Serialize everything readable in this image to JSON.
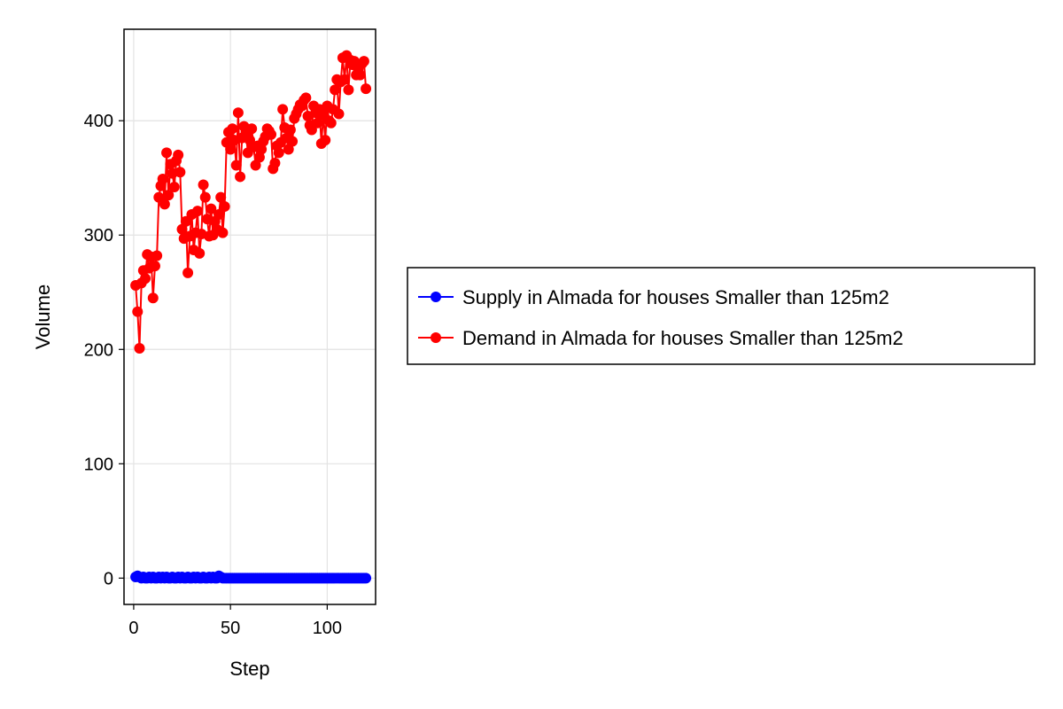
{
  "chart_data": {
    "type": "line",
    "xlabel": "Step",
    "ylabel": "Volume",
    "xlim": [
      -5,
      125
    ],
    "ylim": [
      -23,
      480
    ],
    "x_ticks": [
      0,
      50,
      100
    ],
    "y_ticks": [
      0,
      100,
      200,
      300,
      400
    ],
    "grid": true,
    "legend_position": "right",
    "series": [
      {
        "name": "Supply in Almada for houses Smaller than 125m2",
        "color": "#0000ff",
        "x": [
          1,
          2,
          3,
          4,
          5,
          6,
          7,
          8,
          9,
          10,
          11,
          12,
          13,
          14,
          15,
          16,
          17,
          18,
          19,
          20,
          21,
          22,
          23,
          24,
          25,
          26,
          27,
          28,
          29,
          30,
          31,
          32,
          33,
          34,
          35,
          36,
          37,
          38,
          39,
          40,
          41,
          42,
          43,
          44,
          45,
          46,
          47,
          48,
          49,
          50,
          51,
          52,
          53,
          54,
          55,
          56,
          57,
          58,
          59,
          60,
          61,
          62,
          63,
          64,
          65,
          66,
          67,
          68,
          69,
          70,
          71,
          72,
          73,
          74,
          75,
          76,
          77,
          78,
          79,
          80,
          81,
          82,
          83,
          84,
          85,
          86,
          87,
          88,
          89,
          90,
          91,
          92,
          93,
          94,
          95,
          96,
          97,
          98,
          99,
          100,
          101,
          102,
          103,
          104,
          105,
          106,
          107,
          108,
          109,
          110,
          111,
          112,
          113,
          114,
          115,
          116,
          117,
          118,
          119,
          120
        ],
        "values": [
          1,
          2,
          1,
          0,
          1,
          0,
          0,
          1,
          0,
          1,
          0,
          0,
          1,
          0,
          1,
          0,
          1,
          0,
          0,
          1,
          0,
          0,
          1,
          0,
          1,
          0,
          0,
          1,
          0,
          0,
          1,
          0,
          1,
          0,
          0,
          1,
          0,
          0,
          1,
          0,
          1,
          0,
          0,
          2,
          1,
          0,
          0,
          0,
          0,
          0,
          0,
          0,
          0,
          0,
          0,
          0,
          0,
          0,
          0,
          0,
          0,
          0,
          0,
          0,
          0,
          0,
          0,
          0,
          0,
          0,
          0,
          0,
          0,
          0,
          0,
          0,
          0,
          0,
          0,
          0,
          0,
          0,
          0,
          0,
          0,
          0,
          0,
          0,
          0,
          0,
          0,
          0,
          0,
          0,
          0,
          0,
          0,
          0,
          0,
          0,
          0,
          0,
          0,
          0,
          0,
          0,
          0,
          0,
          0,
          0,
          0,
          0,
          0,
          0,
          0,
          0,
          0,
          0,
          0,
          0
        ]
      },
      {
        "name": "Demand in Almada for houses Smaller than 125m2",
        "color": "#ff0000",
        "x": [
          1,
          2,
          3,
          4,
          5,
          6,
          7,
          8,
          9,
          10,
          11,
          12,
          13,
          14,
          15,
          16,
          17,
          18,
          19,
          20,
          21,
          22,
          23,
          24,
          25,
          26,
          27,
          28,
          29,
          30,
          31,
          32,
          33,
          34,
          35,
          36,
          37,
          38,
          39,
          40,
          41,
          42,
          43,
          44,
          45,
          46,
          47,
          48,
          49,
          50,
          51,
          52,
          53,
          54,
          55,
          56,
          57,
          58,
          59,
          60,
          61,
          62,
          63,
          64,
          65,
          66,
          67,
          68,
          69,
          70,
          71,
          72,
          73,
          74,
          75,
          76,
          77,
          78,
          79,
          80,
          81,
          82,
          83,
          84,
          85,
          86,
          87,
          88,
          89,
          90,
          91,
          92,
          93,
          94,
          95,
          96,
          97,
          98,
          99,
          100,
          101,
          102,
          103,
          104,
          105,
          106,
          107,
          108,
          109,
          110,
          111,
          112,
          113,
          114,
          115,
          116,
          117,
          118,
          119,
          120
        ],
        "values": [
          256,
          233,
          201,
          258,
          269,
          262,
          283,
          271,
          281,
          245,
          273,
          282,
          333,
          343,
          349,
          327,
          372,
          335,
          362,
          354,
          342,
          365,
          370,
          355,
          305,
          297,
          312,
          267,
          299,
          318,
          287,
          302,
          321,
          284,
          301,
          344,
          333,
          314,
          299,
          323,
          300,
          312,
          305,
          318,
          333,
          302,
          325,
          381,
          390,
          375,
          393,
          383,
          361,
          407,
          351,
          385,
          395,
          390,
          372,
          383,
          393,
          377,
          361,
          378,
          368,
          375,
          382,
          386,
          393,
          391,
          388,
          358,
          363,
          378,
          372,
          381,
          410,
          394,
          385,
          375,
          392,
          382,
          402,
          406,
          410,
          414,
          413,
          418,
          420,
          404,
          396,
          392,
          413,
          407,
          398,
          410,
          380,
          405,
          383,
          413,
          400,
          398,
          410,
          427,
          436,
          406,
          434,
          455,
          436,
          457,
          427,
          453,
          449,
          452,
          440,
          445,
          440,
          450,
          452,
          428
        ]
      }
    ]
  }
}
